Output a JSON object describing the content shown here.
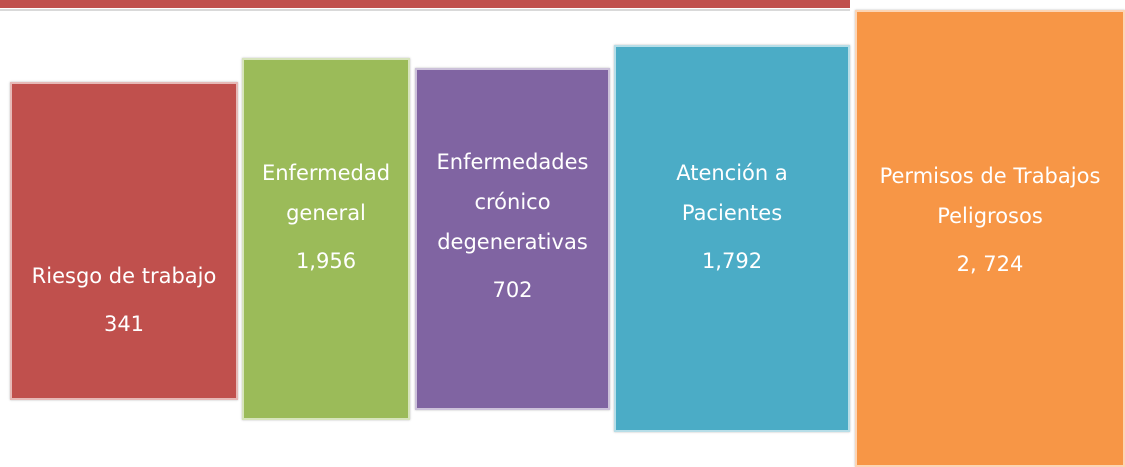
{
  "boxes": [
    {
      "label_lines": [
        "Riesgo de trabajo"
      ],
      "value": "341"
    },
    {
      "label_lines": [
        "Enfermedad",
        "general"
      ],
      "value": "1,956"
    },
    {
      "label_lines": [
        "Enfermedades",
        "crónico",
        "degenerativas"
      ],
      "value": "702"
    },
    {
      "label_lines": [
        "Atención a",
        "Pacientes"
      ],
      "value": "1,792"
    },
    {
      "label_lines": [
        "Permisos de Trabajos",
        "Peligrosos"
      ],
      "value": "2, 724"
    }
  ]
}
